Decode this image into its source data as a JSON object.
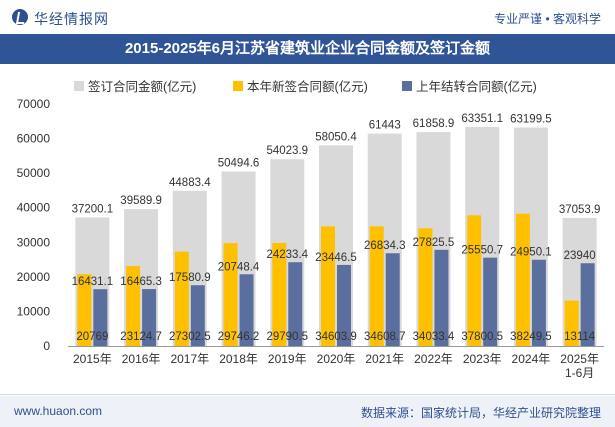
{
  "header": {
    "brand": "华经情报网",
    "slogan": "专业严谨 • 客观科学"
  },
  "footer": {
    "site": "www.huaon.com",
    "source": "数据来源：国家统计局，华经产业研究院整理"
  },
  "colors": {
    "title_bg": "#2f5597",
    "total": "#d9d9d9",
    "new": "#ffc000",
    "carry": "#5b6f9e"
  },
  "chart_data": {
    "type": "bar",
    "title": "2015-2025年6月江苏省建筑业企业合同金额及签订金额",
    "xlabel": "",
    "ylabel": "",
    "ylim": [
      0,
      70000
    ],
    "yticks": [
      0,
      10000,
      20000,
      30000,
      40000,
      50000,
      60000,
      70000
    ],
    "categories": [
      "2015年",
      "2016年",
      "2017年",
      "2018年",
      "2019年",
      "2020年",
      "2021年",
      "2022年",
      "2023年",
      "2024年",
      "2025年\n1-6月"
    ],
    "series": [
      {
        "name": "签订合同金额(亿元)",
        "values": [
          37200.1,
          39589.9,
          44883.4,
          50494.6,
          54023.9,
          58050.4,
          61443,
          61858.9,
          63351.1,
          63199.5,
          37053.9
        ]
      },
      {
        "name": "本年新签合同额(亿元)",
        "values": [
          20769,
          23124.7,
          27302.5,
          29746.2,
          29790.5,
          34603.9,
          34608.7,
          34033.4,
          37800.5,
          38249.5,
          13114
        ]
      },
      {
        "name": "上年结转合同额(亿元)",
        "values": [
          16431.1,
          16465.3,
          17580.9,
          20748.4,
          24233.4,
          23446.5,
          26834.3,
          27825.5,
          25550.7,
          24950.1,
          23940
        ]
      }
    ],
    "legend": "top"
  }
}
